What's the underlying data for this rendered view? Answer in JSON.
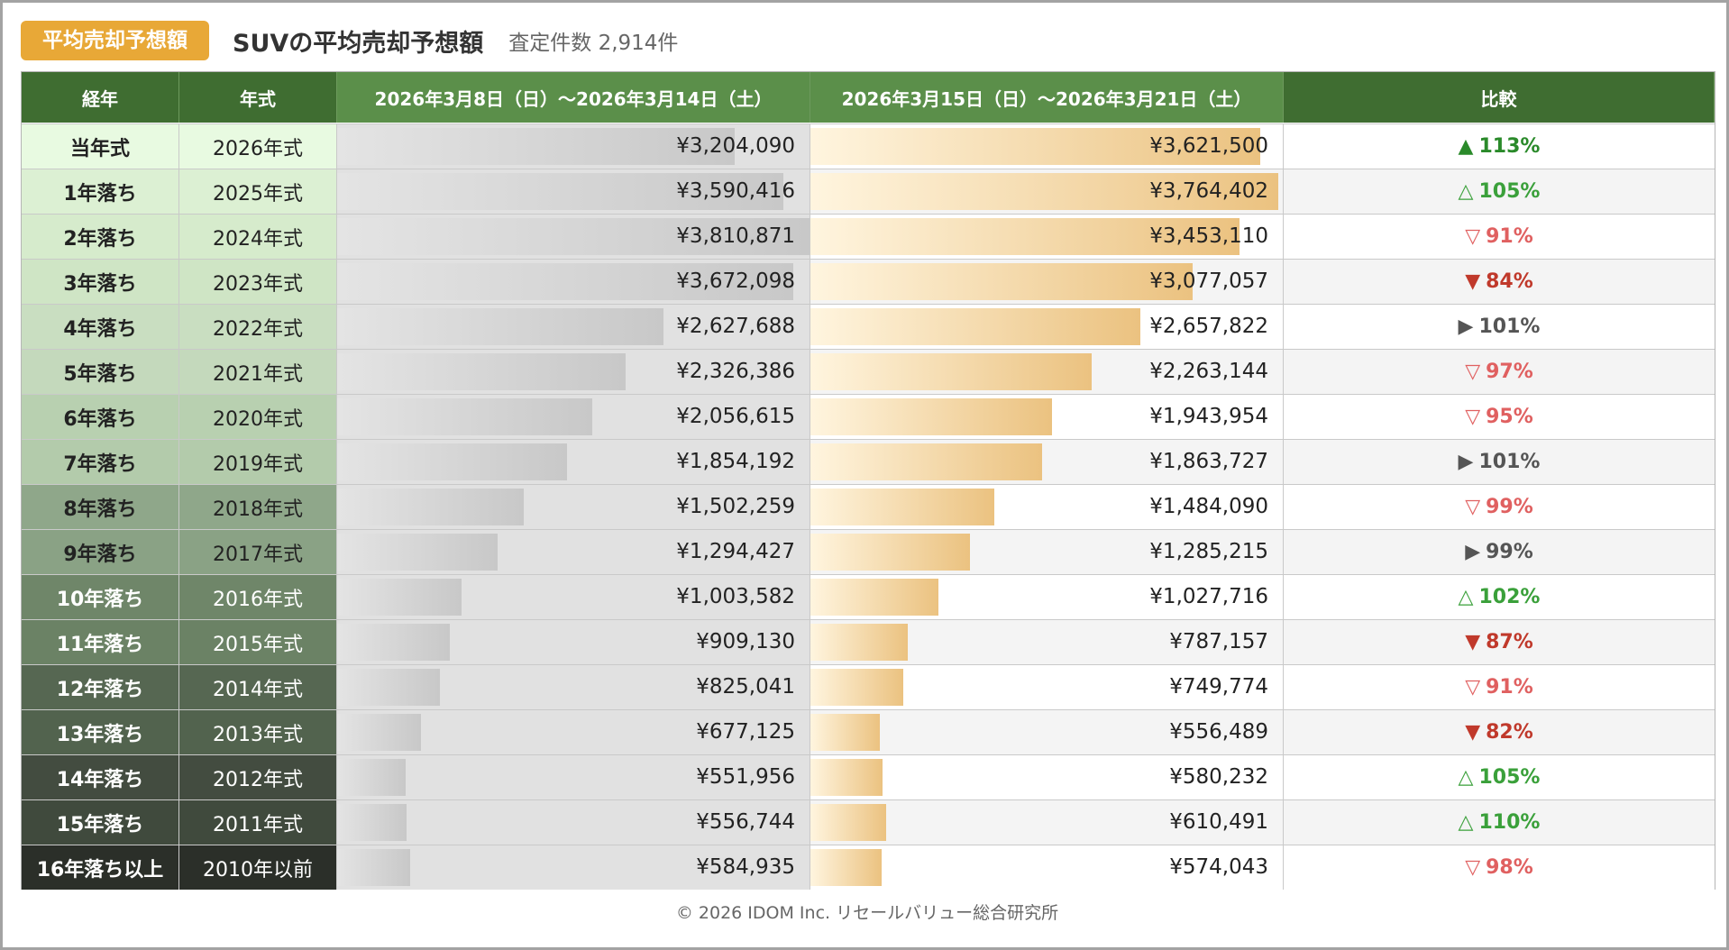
{
  "header": {
    "badge": "平均売却予想額",
    "title": "SUVの平均売却予想額",
    "subtitle": "査定件数 2,914件"
  },
  "colors": {
    "header_dark_green": "#3f6d31",
    "header_light_green": "#5b8f4a",
    "badge_orange": "#e8a837",
    "up_green": "#2a8a2a",
    "down_red": "#c0392b",
    "flat_gray": "#555555",
    "up_outline_green": "#3aa03a",
    "down_outline_red": "#e06060"
  },
  "chart_data": {
    "type": "table",
    "columns": [
      "経年",
      "年式",
      "2026年3月8日（日）～2026年3月14日（土）",
      "2026年3月15日（日）～2026年3月21日（土）",
      "比較"
    ],
    "rows": [
      {
        "age": "当年式",
        "year": "2026年式",
        "prev": 3204090,
        "prev_text": "¥3,204,090",
        "curr": 3621500,
        "curr_text": "¥3,621,500",
        "cmp_icon": "triangle-up-filled",
        "cmp": "113%"
      },
      {
        "age": "1年落ち",
        "year": "2025年式",
        "prev": 3590416,
        "prev_text": "¥3,590,416",
        "curr": 3764402,
        "curr_text": "¥3,764,402",
        "cmp_icon": "triangle-up-outline",
        "cmp": "105%"
      },
      {
        "age": "2年落ち",
        "year": "2024年式",
        "prev": 3810871,
        "prev_text": "¥3,810,871",
        "curr": 3453110,
        "curr_text": "¥3,453,110",
        "cmp_icon": "triangle-down-outline",
        "cmp": "91%"
      },
      {
        "age": "3年落ち",
        "year": "2023年式",
        "prev": 3672098,
        "prev_text": "¥3,672,098",
        "curr": 3077057,
        "curr_text": "¥3,077,057",
        "cmp_icon": "triangle-down-filled",
        "cmp": "84%"
      },
      {
        "age": "4年落ち",
        "year": "2022年式",
        "prev": 2627688,
        "prev_text": "¥2,627,688",
        "curr": 2657822,
        "curr_text": "¥2,657,822",
        "cmp_icon": "triangle-right-filled",
        "cmp": "101%"
      },
      {
        "age": "5年落ち",
        "year": "2021年式",
        "prev": 2326386,
        "prev_text": "¥2,326,386",
        "curr": 2263144,
        "curr_text": "¥2,263,144",
        "cmp_icon": "triangle-down-outline",
        "cmp": "97%"
      },
      {
        "age": "6年落ち",
        "year": "2020年式",
        "prev": 2056615,
        "prev_text": "¥2,056,615",
        "curr": 1943954,
        "curr_text": "¥1,943,954",
        "cmp_icon": "triangle-down-outline",
        "cmp": "95%"
      },
      {
        "age": "7年落ち",
        "year": "2019年式",
        "prev": 1854192,
        "prev_text": "¥1,854,192",
        "curr": 1863727,
        "curr_text": "¥1,863,727",
        "cmp_icon": "triangle-right-filled",
        "cmp": "101%"
      },
      {
        "age": "8年落ち",
        "year": "2018年式",
        "prev": 1502259,
        "prev_text": "¥1,502,259",
        "curr": 1484090,
        "curr_text": "¥1,484,090",
        "cmp_icon": "triangle-down-outline",
        "cmp": "99%"
      },
      {
        "age": "9年落ち",
        "year": "2017年式",
        "prev": 1294427,
        "prev_text": "¥1,294,427",
        "curr": 1285215,
        "curr_text": "¥1,285,215",
        "cmp_icon": "triangle-right-filled",
        "cmp": "99%"
      },
      {
        "age": "10年落ち",
        "year": "2016年式",
        "prev": 1003582,
        "prev_text": "¥1,003,582",
        "curr": 1027716,
        "curr_text": "¥1,027,716",
        "cmp_icon": "triangle-up-outline",
        "cmp": "102%"
      },
      {
        "age": "11年落ち",
        "year": "2015年式",
        "prev": 909130,
        "prev_text": "¥909,130",
        "curr": 787157,
        "curr_text": "¥787,157",
        "cmp_icon": "triangle-down-filled",
        "cmp": "87%"
      },
      {
        "age": "12年落ち",
        "year": "2014年式",
        "prev": 825041,
        "prev_text": "¥825,041",
        "curr": 749774,
        "curr_text": "¥749,774",
        "cmp_icon": "triangle-down-outline",
        "cmp": "91%"
      },
      {
        "age": "13年落ち",
        "year": "2013年式",
        "prev": 677125,
        "prev_text": "¥677,125",
        "curr": 556489,
        "curr_text": "¥556,489",
        "cmp_icon": "triangle-down-filled",
        "cmp": "82%"
      },
      {
        "age": "14年落ち",
        "year": "2012年式",
        "prev": 551956,
        "prev_text": "¥551,956",
        "curr": 580232,
        "curr_text": "¥580,232",
        "cmp_icon": "triangle-up-outline",
        "cmp": "105%"
      },
      {
        "age": "15年落ち",
        "year": "2011年式",
        "prev": 556744,
        "prev_text": "¥556,744",
        "curr": 610491,
        "curr_text": "¥610,491",
        "cmp_icon": "triangle-up-outline",
        "cmp": "110%"
      },
      {
        "age": "16年落ち以上",
        "year": "2010年以前",
        "prev": 584935,
        "prev_text": "¥584,935",
        "curr": 574043,
        "curr_text": "¥574,043",
        "cmp_icon": "triangle-down-outline",
        "cmp": "98%"
      }
    ],
    "row_colors": [
      {
        "bg": "#e8fae1",
        "fg": "#222222"
      },
      {
        "bg": "#dcf0d3",
        "fg": "#222222"
      },
      {
        "bg": "#d6ebcc",
        "fg": "#222222"
      },
      {
        "bg": "#cfe5c5",
        "fg": "#222222"
      },
      {
        "bg": "#c9dec1",
        "fg": "#222222"
      },
      {
        "bg": "#c4d9bc",
        "fg": "#222222"
      },
      {
        "bg": "#b8d0b0",
        "fg": "#222222"
      },
      {
        "bg": "#b3cbab",
        "fg": "#222222"
      },
      {
        "bg": "#8fa78a",
        "fg": "#222222"
      },
      {
        "bg": "#8aa285",
        "fg": "#222222"
      },
      {
        "bg": "#6f8669",
        "fg": "#ffffff"
      },
      {
        "bg": "#6b8265",
        "fg": "#ffffff"
      },
      {
        "bg": "#566752",
        "fg": "#ffffff"
      },
      {
        "bg": "#52634e",
        "fg": "#ffffff"
      },
      {
        "bg": "#434c40",
        "fg": "#ffffff"
      },
      {
        "bg": "#404a3d",
        "fg": "#ffffff"
      },
      {
        "bg": "#2b2f29",
        "fg": "#ffffff"
      }
    ]
  },
  "footer": "© 2026 IDOM Inc. リセールバリュー総合研究所"
}
